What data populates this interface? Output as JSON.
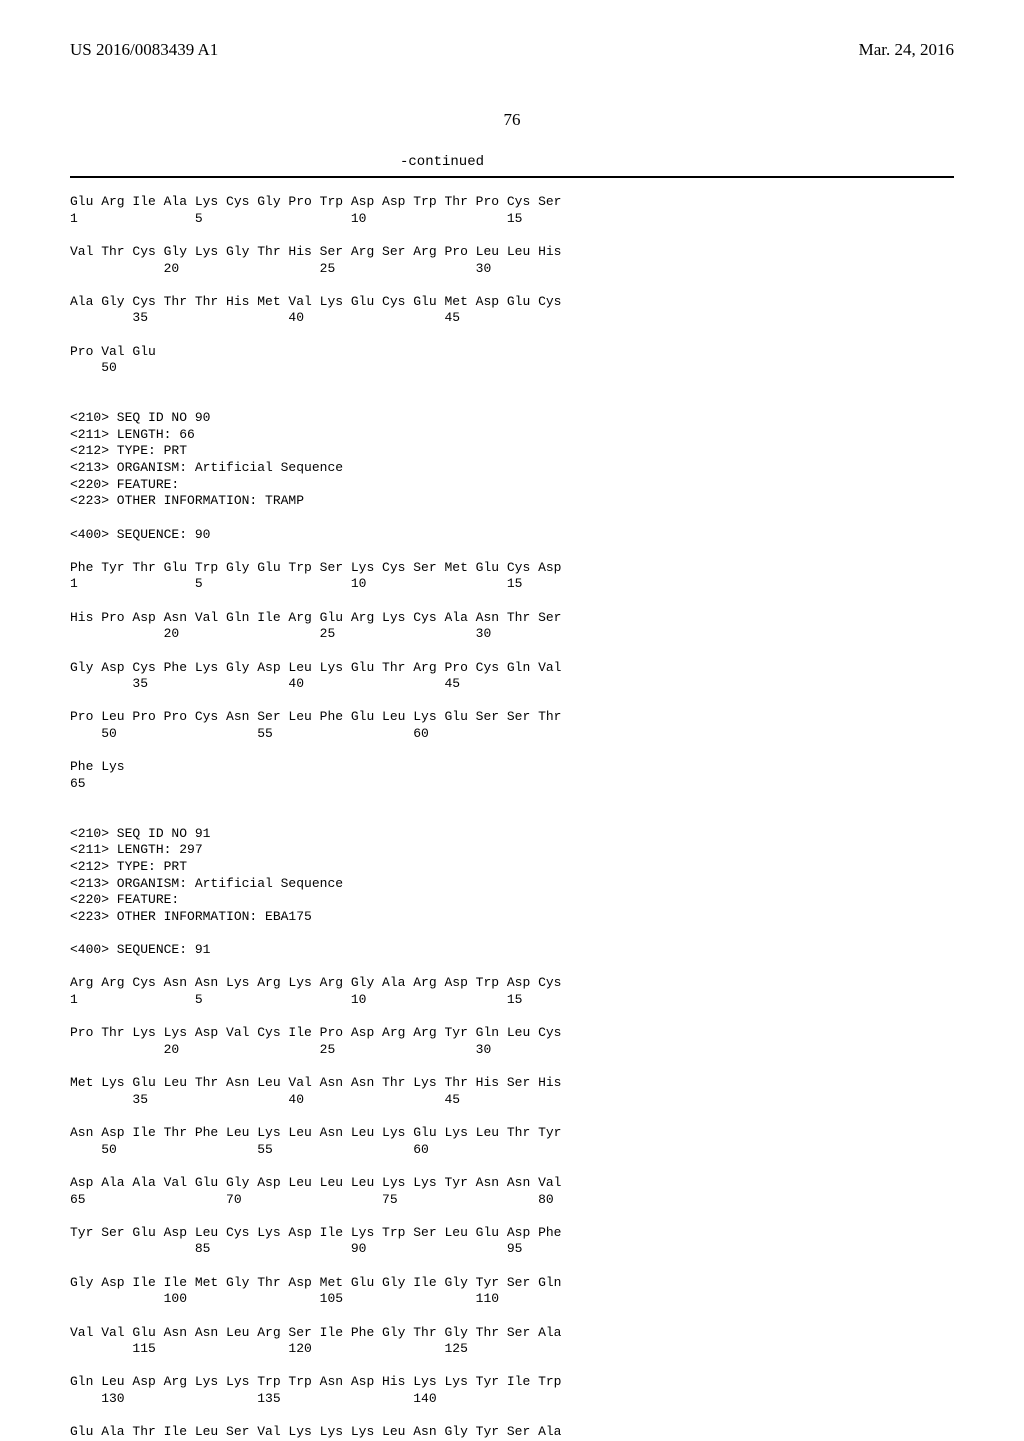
{
  "header": {
    "left": "US 2016/0083439 A1",
    "right": "Mar. 24, 2016"
  },
  "page_number": "76",
  "continued_label": "-continued",
  "seq_text": "Glu Arg Ile Ala Lys Cys Gly Pro Trp Asp Asp Trp Thr Pro Cys Ser\n1               5                   10                  15\n\nVal Thr Cys Gly Lys Gly Thr His Ser Arg Ser Arg Pro Leu Leu His\n            20                  25                  30\n\nAla Gly Cys Thr Thr His Met Val Lys Glu Cys Glu Met Asp Glu Cys\n        35                  40                  45\n\nPro Val Glu\n    50\n\n\n<210> SEQ ID NO 90\n<211> LENGTH: 66\n<212> TYPE: PRT\n<213> ORGANISM: Artificial Sequence\n<220> FEATURE:\n<223> OTHER INFORMATION: TRAMP\n\n<400> SEQUENCE: 90\n\nPhe Tyr Thr Glu Trp Gly Glu Trp Ser Lys Cys Ser Met Glu Cys Asp\n1               5                   10                  15\n\nHis Pro Asp Asn Val Gln Ile Arg Glu Arg Lys Cys Ala Asn Thr Ser\n            20                  25                  30\n\nGly Asp Cys Phe Lys Gly Asp Leu Lys Glu Thr Arg Pro Cys Gln Val\n        35                  40                  45\n\nPro Leu Pro Pro Cys Asn Ser Leu Phe Glu Leu Lys Glu Ser Ser Thr\n    50                  55                  60\n\nPhe Lys\n65\n\n\n<210> SEQ ID NO 91\n<211> LENGTH: 297\n<212> TYPE: PRT\n<213> ORGANISM: Artificial Sequence\n<220> FEATURE:\n<223> OTHER INFORMATION: EBA175\n\n<400> SEQUENCE: 91\n\nArg Arg Cys Asn Asn Lys Arg Lys Arg Gly Ala Arg Asp Trp Asp Cys\n1               5                   10                  15\n\nPro Thr Lys Lys Asp Val Cys Ile Pro Asp Arg Arg Tyr Gln Leu Cys\n            20                  25                  30\n\nMet Lys Glu Leu Thr Asn Leu Val Asn Asn Thr Lys Thr His Ser His\n        35                  40                  45\n\nAsn Asp Ile Thr Phe Leu Lys Leu Asn Leu Lys Glu Lys Leu Thr Tyr\n    50                  55                  60\n\nAsp Ala Ala Val Glu Gly Asp Leu Leu Leu Lys Lys Tyr Asn Asn Val\n65                  70                  75                  80\n\nTyr Ser Glu Asp Leu Cys Lys Asp Ile Lys Trp Ser Leu Glu Asp Phe\n                85                  90                  95\n\nGly Asp Ile Ile Met Gly Thr Asp Met Glu Gly Ile Gly Tyr Ser Gln\n            100                 105                 110\n\nVal Val Glu Asn Asn Leu Arg Ser Ile Phe Gly Thr Gly Thr Ser Ala\n        115                 120                 125\n\nGln Leu Asp Arg Lys Lys Trp Trp Asn Asp His Lys Lys Tyr Ile Trp\n    130                 135                 140\n\nGlu Ala Thr Ile Leu Ser Val Lys Lys Lys Leu Asn Gly Tyr Ser Ala"
}
